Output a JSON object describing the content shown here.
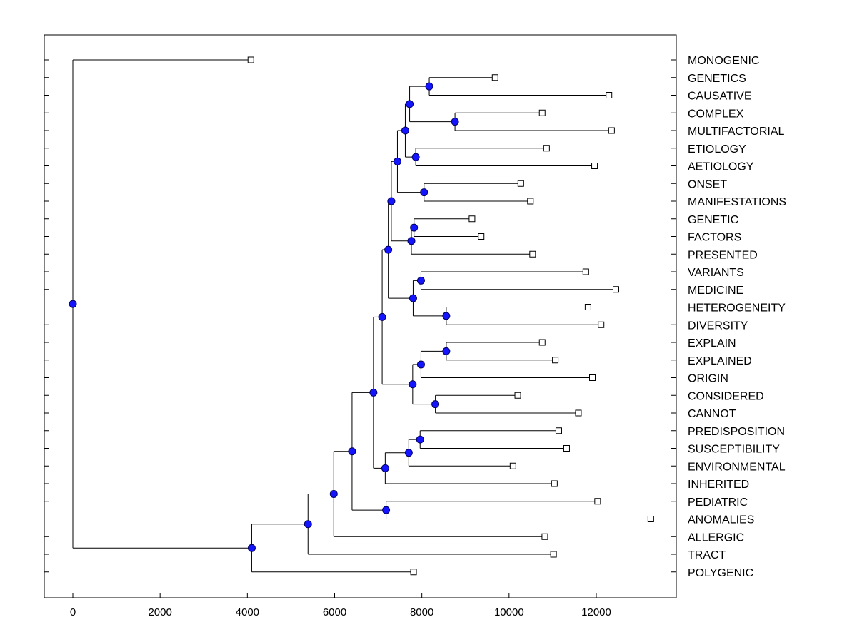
{
  "chart_data": {
    "type": "dendrogram",
    "title": "",
    "xlabel": "",
    "ylabel": "",
    "xlim": [
      -650,
      13900
    ],
    "x_ticks": [
      {
        "value": 0,
        "label": "0"
      },
      {
        "value": 2000,
        "label": "2000"
      },
      {
        "value": 4000,
        "label": "4000"
      },
      {
        "value": 6000,
        "label": "6000"
      },
      {
        "value": 8000,
        "label": "8000"
      },
      {
        "value": 10000,
        "label": "10000"
      },
      {
        "value": 12000,
        "label": "12000"
      }
    ],
    "leaves": [
      {
        "label": "MONOGENIC",
        "x": 4080
      },
      {
        "label": "GENETICS",
        "x": 9680
      },
      {
        "label": "CAUSATIVE",
        "x": 12290
      },
      {
        "label": "COMPLEX",
        "x": 10760
      },
      {
        "label": "MULTIFACTORIAL",
        "x": 12350
      },
      {
        "label": "ETIOLOGY",
        "x": 10860
      },
      {
        "label": "AETIOLOGY",
        "x": 11960
      },
      {
        "label": "ONSET",
        "x": 10270
      },
      {
        "label": "MANIFESTATIONS",
        "x": 10490
      },
      {
        "label": "GENETIC",
        "x": 9150
      },
      {
        "label": "FACTORS",
        "x": 9360
      },
      {
        "label": "PRESENTED",
        "x": 10540
      },
      {
        "label": "VARIANTS",
        "x": 11760
      },
      {
        "label": "MEDICINE",
        "x": 12450
      },
      {
        "label": "HETEROGENEITY",
        "x": 11810
      },
      {
        "label": "DIVERSITY",
        "x": 12110
      },
      {
        "label": "EXPLAIN",
        "x": 10760
      },
      {
        "label": "EXPLAINED",
        "x": 11060
      },
      {
        "label": "ORIGIN",
        "x": 11910
      },
      {
        "label": "CONSIDERED",
        "x": 10200
      },
      {
        "label": "CANNOT",
        "x": 11590
      },
      {
        "label": "PREDISPOSITION",
        "x": 11140
      },
      {
        "label": "SUSCEPTIBILITY",
        "x": 11320
      },
      {
        "label": "ENVIRONMENTAL",
        "x": 10090
      },
      {
        "label": "INHERITED",
        "x": 11040
      },
      {
        "label": "PEDIATRIC",
        "x": 12030
      },
      {
        "label": "ANOMALIES",
        "x": 13250
      },
      {
        "label": "ALLERGIC",
        "x": 10820
      },
      {
        "label": "TRACT",
        "x": 11020
      },
      {
        "label": "POLYGENIC",
        "x": 7810
      }
    ],
    "merges": [
      {
        "id": "n1",
        "x": 8170,
        "children": [
          "GENETICS",
          "CAUSATIVE"
        ]
      },
      {
        "id": "n2",
        "x": 8760,
        "children": [
          "COMPLEX",
          "MULTIFACTORIAL"
        ]
      },
      {
        "id": "n3",
        "x": 7720,
        "children": [
          "n1",
          "n2"
        ]
      },
      {
        "id": "n4",
        "x": 7860,
        "children": [
          "ETIOLOGY",
          "AETIOLOGY"
        ]
      },
      {
        "id": "n5",
        "x": 7620,
        "children": [
          "n3",
          "n4"
        ]
      },
      {
        "id": "n6",
        "x": 8050,
        "children": [
          "ONSET",
          "MANIFESTATIONS"
        ]
      },
      {
        "id": "n7",
        "x": 7440,
        "children": [
          "n5",
          "n6"
        ]
      },
      {
        "id": "n8",
        "x": 7820,
        "children": [
          "GENETIC",
          "FACTORS"
        ]
      },
      {
        "id": "n9",
        "x": 7760,
        "children": [
          "n8",
          "PRESENTED"
        ]
      },
      {
        "id": "n10",
        "x": 7300,
        "children": [
          "n7",
          "n9"
        ]
      },
      {
        "id": "n11",
        "x": 7980,
        "children": [
          "VARIANTS",
          "MEDICINE"
        ]
      },
      {
        "id": "n12",
        "x": 8560,
        "children": [
          "HETEROGENEITY",
          "DIVERSITY"
        ]
      },
      {
        "id": "n13",
        "x": 7800,
        "children": [
          "n11",
          "n12"
        ]
      },
      {
        "id": "n14",
        "x": 7230,
        "children": [
          "n10",
          "n13"
        ]
      },
      {
        "id": "n15",
        "x": 8560,
        "children": [
          "EXPLAIN",
          "EXPLAINED"
        ]
      },
      {
        "id": "n16",
        "x": 7980,
        "children": [
          "n15",
          "ORIGIN"
        ]
      },
      {
        "id": "n17",
        "x": 8310,
        "children": [
          "CONSIDERED",
          "CANNOT"
        ]
      },
      {
        "id": "n18",
        "x": 7790,
        "children": [
          "n16",
          "n17"
        ]
      },
      {
        "id": "n19",
        "x": 7090,
        "children": [
          "n14",
          "n18"
        ]
      },
      {
        "id": "n20",
        "x": 7960,
        "children": [
          "PREDISPOSITION",
          "SUSCEPTIBILITY"
        ]
      },
      {
        "id": "n21",
        "x": 7700,
        "children": [
          "n20",
          "ENVIRONMENTAL"
        ]
      },
      {
        "id": "n22",
        "x": 7160,
        "children": [
          "n21",
          "INHERITED"
        ]
      },
      {
        "id": "n23",
        "x": 6890,
        "children": [
          "n19",
          "n22"
        ]
      },
      {
        "id": "n24",
        "x": 7180,
        "children": [
          "PEDIATRIC",
          "ANOMALIES"
        ]
      },
      {
        "id": "n25",
        "x": 6400,
        "children": [
          "n23",
          "n24"
        ]
      },
      {
        "id": "n26",
        "x": 5980,
        "children": [
          "n25",
          "ALLERGIC"
        ]
      },
      {
        "id": "n27",
        "x": 5390,
        "children": [
          "n26",
          "TRACT"
        ]
      },
      {
        "id": "n28",
        "x": 4100,
        "children": [
          "n27",
          "POLYGENIC"
        ]
      },
      {
        "id": "n29",
        "x": 0,
        "children": [
          "MONOGENIC",
          "n28"
        ]
      }
    ],
    "colors": {
      "node_fill": "#1414ff",
      "node_stroke": "#000060",
      "line": "#000000",
      "leaf_fill": "#ffffff"
    }
  }
}
